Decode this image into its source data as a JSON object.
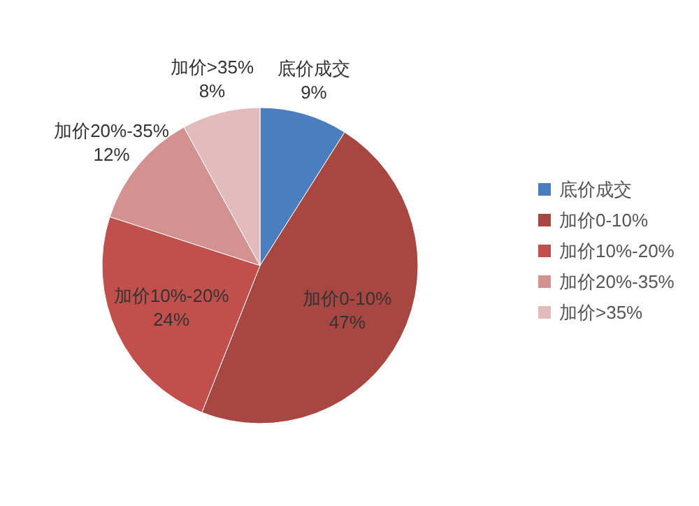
{
  "chart_data": {
    "type": "pie",
    "categories": [
      "底价成交",
      "加价0-10%",
      "加价10%-20%",
      "加价20%-35%",
      "加价>35%"
    ],
    "values": [
      9,
      47,
      24,
      12,
      8
    ],
    "colors": [
      "#4a7ebf",
      "#a84641",
      "#c1504d",
      "#d39190",
      "#e2bcbc"
    ],
    "value_labels": [
      "9%",
      "47%",
      "24%",
      "12%",
      "8%"
    ],
    "legend": "right"
  }
}
